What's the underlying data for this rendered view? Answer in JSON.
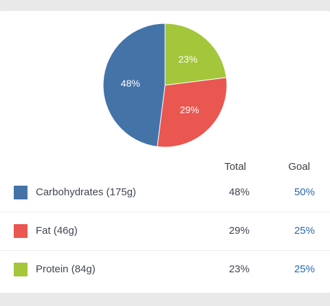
{
  "chart_data": {
    "type": "pie",
    "slices": [
      {
        "name": "Carbohydrates",
        "value": 48,
        "label": "48%",
        "color": "#4473a8"
      },
      {
        "name": "Fat",
        "value": 29,
        "label": "29%",
        "color": "#ea5650"
      },
      {
        "name": "Protein",
        "value": 23,
        "label": "23%",
        "color": "#a3c63b"
      }
    ],
    "title": ""
  },
  "table": {
    "headers": {
      "total": "Total",
      "goal": "Goal"
    },
    "rows": [
      {
        "label": "Carbohydrates (175g)",
        "total": "48%",
        "goal": "50%",
        "color": "#4473a8"
      },
      {
        "label": "Fat (46g)",
        "total": "29%",
        "goal": "25%",
        "color": "#ea5650"
      },
      {
        "label": "Protein (84g)",
        "total": "23%",
        "goal": "25%",
        "color": "#a3c63b"
      }
    ]
  }
}
